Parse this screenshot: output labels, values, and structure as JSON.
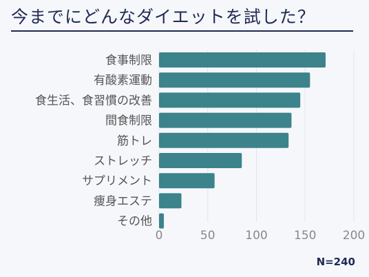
{
  "chart_data": {
    "type": "bar",
    "orientation": "horizontal",
    "title": "今までにどんなダイエットを試した？",
    "categories": [
      "食事制限",
      "有酸素運動",
      "食生活、食習慣の改善",
      "間食制限",
      "筋トレ",
      "ストレッチ",
      "サプリメント",
      "痩身エステ",
      "その他"
    ],
    "values": [
      171,
      155,
      145,
      136,
      133,
      85,
      57,
      23,
      5
    ],
    "xlim": [
      0,
      200
    ],
    "xticks": [
      0,
      50,
      100,
      150,
      200
    ],
    "grid": true,
    "bar_color": "#3c838b",
    "note": "N=240"
  }
}
